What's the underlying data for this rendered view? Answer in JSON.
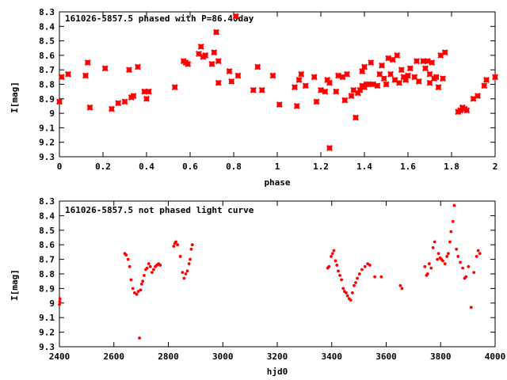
{
  "chart_data": [
    {
      "type": "scatter",
      "title": "161026-5857.5 phased with P=86.40day",
      "xlabel": "phase",
      "ylabel": "I[mag]",
      "xlim": [
        0,
        2
      ],
      "ylim": [
        8.3,
        9.3
      ],
      "y_inverted": true,
      "xticks": [
        "0",
        "0.2",
        "0.4",
        "0.6",
        "0.8",
        "1",
        "1.2",
        "1.4",
        "1.6",
        "1.8",
        "2"
      ],
      "yticks": [
        "8.3",
        "8.4",
        "8.5",
        "8.6",
        "8.7",
        "8.8",
        "8.9",
        "9",
        "9.1",
        "9.2",
        "9.3"
      ],
      "marker": "cross",
      "color": "#ff0000",
      "x": [
        0.0,
        0.01,
        0.04,
        0.12,
        0.13,
        0.14,
        0.21,
        0.24,
        0.27,
        0.3,
        0.32,
        0.33,
        0.34,
        0.36,
        0.39,
        0.4,
        0.41,
        0.53,
        0.57,
        0.58,
        0.59,
        0.64,
        0.65,
        0.66,
        0.67,
        0.7,
        0.71,
        0.72,
        0.73,
        0.73,
        0.78,
        0.79,
        0.81,
        0.82,
        0.89,
        0.91,
        0.93,
        0.98,
        1.01,
        1.08,
        1.09,
        1.1,
        1.11,
        1.13,
        1.17,
        1.18,
        1.2,
        1.22,
        1.23,
        1.24,
        1.24,
        1.27,
        1.28,
        1.3,
        1.31,
        1.32,
        1.34,
        1.35,
        1.36,
        1.37,
        1.38,
        1.39,
        1.39,
        1.4,
        1.4,
        1.41,
        1.42,
        1.43,
        1.44,
        1.46,
        1.47,
        1.48,
        1.49,
        1.5,
        1.51,
        1.52,
        1.53,
        1.54,
        1.55,
        1.56,
        1.57,
        1.58,
        1.59,
        1.6,
        1.61,
        1.63,
        1.64,
        1.65,
        1.67,
        1.68,
        1.69,
        1.7,
        1.7,
        1.71,
        1.72,
        1.73,
        1.74,
        1.75,
        1.76,
        1.77,
        1.83,
        1.84,
        1.85,
        1.86,
        1.87,
        1.9,
        1.92,
        1.95,
        1.96,
        2.0
      ],
      "y": [
        8.92,
        8.75,
        8.73,
        8.74,
        8.65,
        8.96,
        8.69,
        8.97,
        8.93,
        8.92,
        8.7,
        8.89,
        8.88,
        8.68,
        8.85,
        8.9,
        8.85,
        8.82,
        8.64,
        8.65,
        8.66,
        8.59,
        8.54,
        8.61,
        8.6,
        8.66,
        8.58,
        8.44,
        8.79,
        8.64,
        8.71,
        8.78,
        8.33,
        8.74,
        8.84,
        8.68,
        8.84,
        8.74,
        8.94,
        8.82,
        8.95,
        8.77,
        8.73,
        8.81,
        8.75,
        8.92,
        8.84,
        8.85,
        8.77,
        9.24,
        8.79,
        8.85,
        8.74,
        8.75,
        8.91,
        8.73,
        8.88,
        8.84,
        9.03,
        8.86,
        8.84,
        8.71,
        8.81,
        8.68,
        8.82,
        8.8,
        8.8,
        8.65,
        8.8,
        8.81,
        8.73,
        8.67,
        8.76,
        8.8,
        8.62,
        8.73,
        8.63,
        8.77,
        8.6,
        8.79,
        8.7,
        8.75,
        8.77,
        8.74,
        8.69,
        8.75,
        8.64,
        8.78,
        8.64,
        8.69,
        8.64,
        8.79,
        8.73,
        8.65,
        8.76,
        8.75,
        8.82,
        8.6,
        8.76,
        8.58,
        8.99,
        8.98,
        8.96,
        8.97,
        8.98,
        8.9,
        8.88,
        8.81,
        8.77,
        8.75
      ]
    },
    {
      "type": "scatter",
      "title": "161026-5857.5 not phased light curve",
      "xlabel": "hjd0",
      "ylabel": "I[mag]",
      "xlim": [
        2400,
        4000
      ],
      "ylim": [
        8.3,
        9.3
      ],
      "y_inverted": true,
      "xticks": [
        "2400",
        "2600",
        "2800",
        "3000",
        "3200",
        "3400",
        "3600",
        "3800",
        "4000"
      ],
      "yticks": [
        "8.3",
        "8.4",
        "8.5",
        "8.6",
        "8.7",
        "8.8",
        "8.9",
        "9",
        "9.1",
        "9.2",
        "9.3"
      ],
      "marker": "dot",
      "color": "#ff0000",
      "x": [
        2400,
        2401,
        2402,
        2640,
        2645,
        2652,
        2658,
        2663,
        2670,
        2676,
        2684,
        2690,
        2694,
        2698,
        2702,
        2706,
        2711,
        2717,
        2722,
        2728,
        2734,
        2740,
        2746,
        2752,
        2758,
        2764,
        2770,
        2820,
        2824,
        2828,
        2834,
        2844,
        2852,
        2858,
        2864,
        2870,
        2876,
        2880,
        2884,
        2888,
        3385,
        3390,
        3398,
        3403,
        3408,
        3414,
        3419,
        3424,
        3430,
        3436,
        3442,
        3447,
        3453,
        3458,
        3464,
        3470,
        3476,
        3482,
        3488,
        3494,
        3502,
        3511,
        3522,
        3532,
        3540,
        3558,
        3582,
        3652,
        3658,
        3742,
        3748,
        3752,
        3758,
        3765,
        3772,
        3778,
        3788,
        3792,
        3798,
        3803,
        3808,
        3816,
        3823,
        3828,
        3834,
        3838,
        3845,
        3850,
        3858,
        3864,
        3872,
        3881,
        3888,
        3893,
        3902,
        3912,
        3922,
        3932,
        3938,
        3944
      ],
      "y": [
        9.01,
        8.99,
        8.97,
        8.66,
        8.67,
        8.7,
        8.75,
        8.84,
        8.9,
        8.93,
        8.94,
        8.92,
        9.24,
        8.91,
        8.87,
        8.85,
        8.81,
        8.77,
        8.76,
        8.73,
        8.75,
        8.79,
        8.77,
        8.75,
        8.74,
        8.73,
        8.74,
        8.61,
        8.59,
        8.58,
        8.6,
        8.68,
        8.79,
        8.83,
        8.8,
        8.78,
        8.73,
        8.7,
        8.63,
        8.6,
        8.76,
        8.75,
        8.68,
        8.66,
        8.64,
        8.71,
        8.74,
        8.78,
        8.81,
        8.84,
        8.9,
        8.92,
        8.93,
        8.95,
        8.97,
        8.98,
        8.93,
        8.88,
        8.86,
        8.83,
        8.8,
        8.77,
        8.75,
        8.73,
        8.74,
        8.82,
        8.82,
        8.88,
        8.9,
        8.75,
        8.81,
        8.8,
        8.73,
        8.76,
        8.62,
        8.58,
        8.7,
        8.66,
        8.69,
        8.7,
        8.71,
        8.73,
        8.68,
        8.66,
        8.58,
        8.51,
        8.44,
        8.33,
        8.63,
        8.68,
        8.72,
        8.76,
        8.83,
        8.82,
        8.75,
        9.03,
        8.79,
        8.68,
        8.64,
        8.66
      ]
    }
  ]
}
